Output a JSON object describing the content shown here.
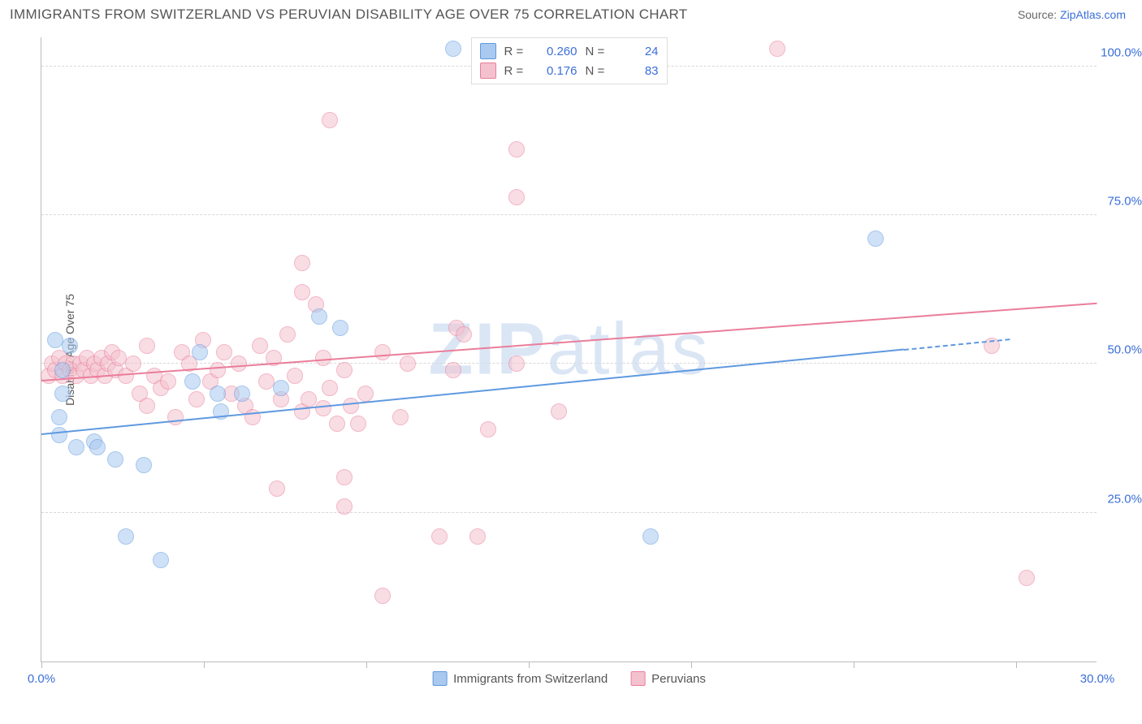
{
  "header": {
    "title": "IMMIGRANTS FROM SWITZERLAND VS PERUVIAN DISABILITY AGE OVER 75 CORRELATION CHART",
    "source_prefix": "Source: ",
    "source_link": "ZipAtlas.com"
  },
  "chart": {
    "type": "scatter",
    "background_color": "#ffffff",
    "grid_color": "#d8d8d8",
    "axis_color": "#bbbbbb",
    "tick_label_color": "#3b6fd8",
    "yaxis_title": "Disability Age Over 75",
    "yaxis_title_color": "#555555",
    "xlim": [
      0,
      30
    ],
    "ylim": [
      0,
      105
    ],
    "yticks": [
      {
        "v": 25,
        "label": "25.0%"
      },
      {
        "v": 50,
        "label": "50.0%"
      },
      {
        "v": 75,
        "label": "75.0%"
      },
      {
        "v": 100,
        "label": "100.0%"
      }
    ],
    "xticks_minor": [
      0,
      4.62,
      9.23,
      13.85,
      18.46,
      23.08,
      27.69
    ],
    "xticks_labeled": [
      {
        "v": 0,
        "label": "0.0%"
      },
      {
        "v": 30,
        "label": "30.0%"
      }
    ],
    "marker_radius": 10,
    "marker_opacity": 0.55,
    "series": [
      {
        "name": "Immigrants from Switzerland",
        "fill": "#a9c9ef",
        "stroke": "#5f99e0",
        "r_value": "0.260",
        "n_value": "24",
        "trend": {
          "x0": 0,
          "y0": 38,
          "x1": 27.5,
          "y1": 54,
          "dash_after_x": 24.5
        },
        "points": [
          {
            "x": 0.4,
            "y": 54
          },
          {
            "x": 0.6,
            "y": 45
          },
          {
            "x": 0.6,
            "y": 49
          },
          {
            "x": 0.8,
            "y": 53
          },
          {
            "x": 0.5,
            "y": 41
          },
          {
            "x": 0.5,
            "y": 38
          },
          {
            "x": 1.0,
            "y": 36
          },
          {
            "x": 1.5,
            "y": 37
          },
          {
            "x": 1.6,
            "y": 36
          },
          {
            "x": 2.1,
            "y": 34
          },
          {
            "x": 2.9,
            "y": 33
          },
          {
            "x": 2.4,
            "y": 21
          },
          {
            "x": 3.4,
            "y": 17
          },
          {
            "x": 4.3,
            "y": 47
          },
          {
            "x": 4.5,
            "y": 52
          },
          {
            "x": 5.1,
            "y": 42
          },
          {
            "x": 5.0,
            "y": 45
          },
          {
            "x": 5.7,
            "y": 45
          },
          {
            "x": 6.8,
            "y": 46
          },
          {
            "x": 7.9,
            "y": 58
          },
          {
            "x": 8.5,
            "y": 56
          },
          {
            "x": 11.7,
            "y": 103
          },
          {
            "x": 17.3,
            "y": 21
          },
          {
            "x": 23.7,
            "y": 71
          }
        ]
      },
      {
        "name": "Peruvians",
        "fill": "#f4c2ce",
        "stroke": "#ea7d9a",
        "r_value": "0.176",
        "n_value": "83",
        "trend": {
          "x0": 0,
          "y0": 47,
          "x1": 30,
          "y1": 60
        },
        "points": [
          {
            "x": 0.2,
            "y": 48
          },
          {
            "x": 0.3,
            "y": 50
          },
          {
            "x": 0.4,
            "y": 49
          },
          {
            "x": 0.5,
            "y": 51
          },
          {
            "x": 0.6,
            "y": 48
          },
          {
            "x": 0.7,
            "y": 50
          },
          {
            "x": 0.8,
            "y": 49
          },
          {
            "x": 0.9,
            "y": 50
          },
          {
            "x": 1.0,
            "y": 48
          },
          {
            "x": 1.1,
            "y": 50
          },
          {
            "x": 1.2,
            "y": 49
          },
          {
            "x": 1.3,
            "y": 51
          },
          {
            "x": 1.4,
            "y": 48
          },
          {
            "x": 1.5,
            "y": 50
          },
          {
            "x": 1.6,
            "y": 49
          },
          {
            "x": 1.7,
            "y": 51
          },
          {
            "x": 1.8,
            "y": 48
          },
          {
            "x": 1.9,
            "y": 50
          },
          {
            "x": 2.0,
            "y": 52
          },
          {
            "x": 2.1,
            "y": 49
          },
          {
            "x": 2.2,
            "y": 51
          },
          {
            "x": 2.4,
            "y": 48
          },
          {
            "x": 2.6,
            "y": 50
          },
          {
            "x": 2.8,
            "y": 45
          },
          {
            "x": 3.0,
            "y": 53
          },
          {
            "x": 3.2,
            "y": 48
          },
          {
            "x": 3.4,
            "y": 46
          },
          {
            "x": 3.0,
            "y": 43
          },
          {
            "x": 3.6,
            "y": 47
          },
          {
            "x": 3.8,
            "y": 41
          },
          {
            "x": 4.0,
            "y": 52
          },
          {
            "x": 4.2,
            "y": 50
          },
          {
            "x": 4.4,
            "y": 44
          },
          {
            "x": 4.6,
            "y": 54
          },
          {
            "x": 4.8,
            "y": 47
          },
          {
            "x": 5.0,
            "y": 49
          },
          {
            "x": 5.2,
            "y": 52
          },
          {
            "x": 5.4,
            "y": 45
          },
          {
            "x": 5.6,
            "y": 50
          },
          {
            "x": 5.8,
            "y": 43
          },
          {
            "x": 6.0,
            "y": 41
          },
          {
            "x": 6.2,
            "y": 53
          },
          {
            "x": 6.4,
            "y": 47
          },
          {
            "x": 6.6,
            "y": 51
          },
          {
            "x": 6.8,
            "y": 44
          },
          {
            "x": 7.0,
            "y": 55
          },
          {
            "x": 6.7,
            "y": 29
          },
          {
            "x": 7.2,
            "y": 48
          },
          {
            "x": 7.4,
            "y": 42
          },
          {
            "x": 7.4,
            "y": 67
          },
          {
            "x": 7.4,
            "y": 62
          },
          {
            "x": 7.8,
            "y": 60
          },
          {
            "x": 7.6,
            "y": 44
          },
          {
            "x": 8.0,
            "y": 42.5
          },
          {
            "x": 8.8,
            "y": 43
          },
          {
            "x": 8.0,
            "y": 51
          },
          {
            "x": 8.2,
            "y": 46
          },
          {
            "x": 8.4,
            "y": 40
          },
          {
            "x": 8.2,
            "y": 91
          },
          {
            "x": 8.6,
            "y": 49
          },
          {
            "x": 8.6,
            "y": 26
          },
          {
            "x": 8.6,
            "y": 31
          },
          {
            "x": 9.7,
            "y": 52
          },
          {
            "x": 9.0,
            "y": 40
          },
          {
            "x": 9.2,
            "y": 45
          },
          {
            "x": 9.7,
            "y": 11
          },
          {
            "x": 10.2,
            "y": 41
          },
          {
            "x": 10.4,
            "y": 50
          },
          {
            "x": 11.8,
            "y": 56
          },
          {
            "x": 11.3,
            "y": 21
          },
          {
            "x": 11.7,
            "y": 49
          },
          {
            "x": 12.4,
            "y": 21
          },
          {
            "x": 12.7,
            "y": 39
          },
          {
            "x": 12.0,
            "y": 55
          },
          {
            "x": 13.5,
            "y": 86
          },
          {
            "x": 13.5,
            "y": 50
          },
          {
            "x": 13.5,
            "y": 78
          },
          {
            "x": 13.4,
            "y": 103
          },
          {
            "x": 14.7,
            "y": 42
          },
          {
            "x": 15.1,
            "y": 103
          },
          {
            "x": 20.9,
            "y": 103
          },
          {
            "x": 27.0,
            "y": 53
          },
          {
            "x": 28.0,
            "y": 14
          }
        ]
      }
    ],
    "watermark": {
      "zip": "ZIP",
      "atlas": "atlas",
      "color": "#dbe6f5"
    },
    "legend_bottom": [
      {
        "swatch_fill": "#a9c9ef",
        "swatch_stroke": "#5f99e0",
        "label": "Immigrants from Switzerland"
      },
      {
        "swatch_fill": "#f4c2ce",
        "swatch_stroke": "#ea7d9a",
        "label": "Peruvians"
      }
    ],
    "legend_top_labels": {
      "r": "R =",
      "n": "N ="
    }
  }
}
